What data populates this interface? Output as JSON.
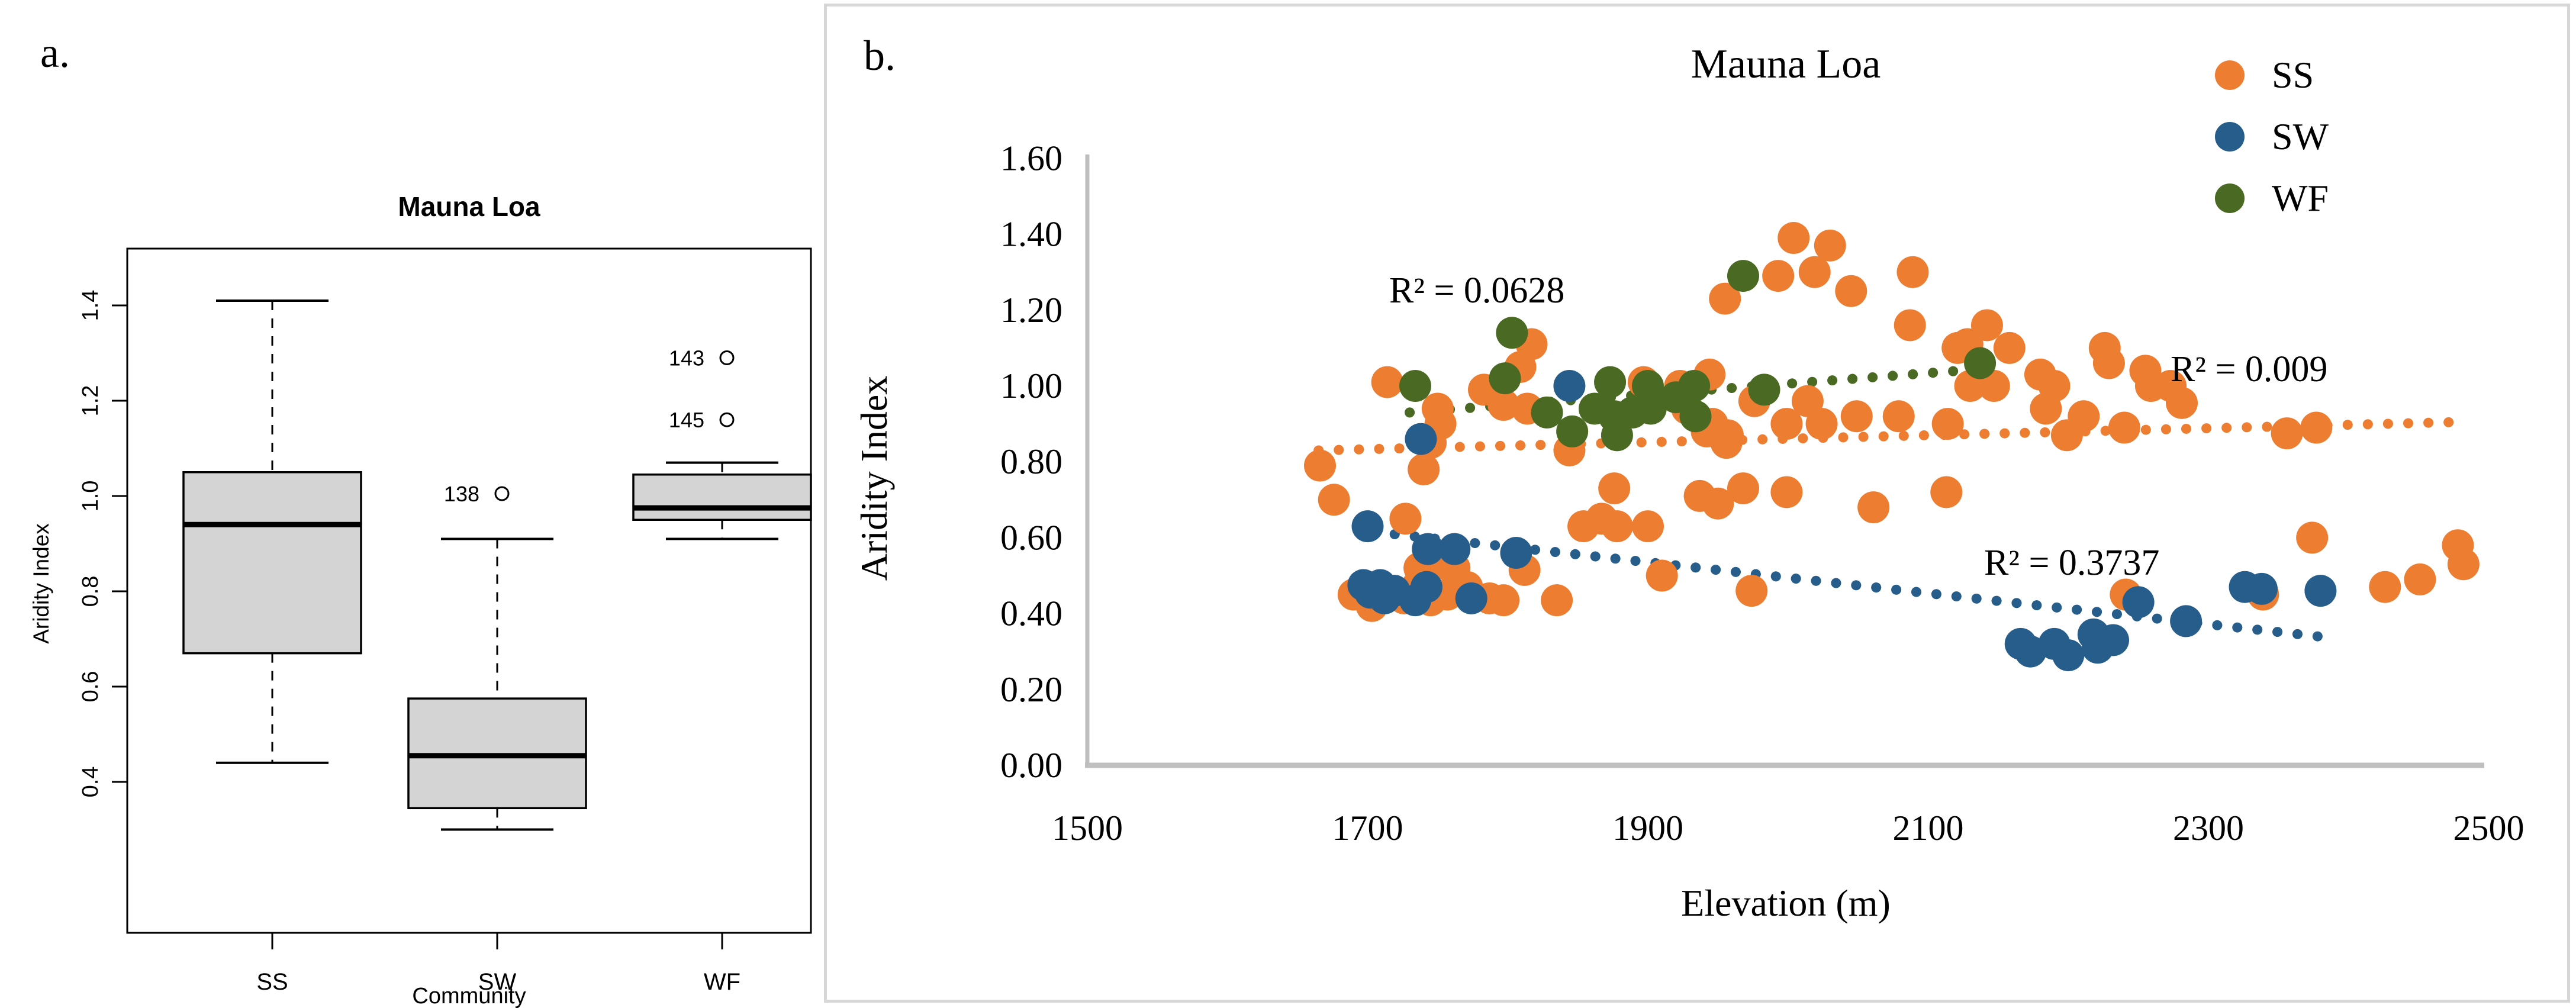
{
  "figure": {
    "panel_a_label": "a.",
    "panel_b_label": "b."
  },
  "colors": {
    "ss": "#ED7D31",
    "sw": "#275D8B",
    "wf": "#4A6A23",
    "box_fill": "#D4D4D4",
    "box_stroke": "#000000",
    "axis_gray": "#BFBFBF",
    "panel_border": "#D7D7D7"
  },
  "chart_data": [
    {
      "type": "box",
      "title": "Mauna Loa",
      "xlabel": "Community",
      "ylabel": "Aridity Index",
      "y_ticks": [
        "1.4",
        "1.2",
        "1.0",
        "0.8",
        "0.6",
        "0.4"
      ],
      "ylim": [
        0.08,
        1.52
      ],
      "categories": [
        "SS",
        "SW",
        "WF"
      ],
      "groups": [
        {
          "label": "SS",
          "min": 0.44,
          "q1": 0.67,
          "median": 0.94,
          "q3": 1.05,
          "max": 1.41,
          "outliers": []
        },
        {
          "label": "SW",
          "min": 0.3,
          "q1": 0.345,
          "median": 0.455,
          "q3": 0.575,
          "max": 0.91,
          "outliers": [
            {
              "id": "138",
              "value": 1.005
            }
          ]
        },
        {
          "label": "WF",
          "min": 0.91,
          "q1": 0.95,
          "median": 0.975,
          "q3": 1.045,
          "max": 1.07,
          "outliers": [
            {
              "id": "143",
              "value": 1.29
            },
            {
              "id": "145",
              "value": 1.16
            }
          ]
        }
      ]
    },
    {
      "type": "scatter",
      "title": "Mauna Loa",
      "xlabel": "Elevation (m)",
      "ylabel": "Aridity Index",
      "x_ticks": [
        "1500",
        "1700",
        "1900",
        "2100",
        "2300",
        "2500"
      ],
      "y_ticks": [
        "0.00",
        "0.20",
        "0.40",
        "0.60",
        "0.80",
        "1.00",
        "1.20",
        "1.40",
        "1.60"
      ],
      "xlim": [
        1500,
        2500
      ],
      "ylim": [
        0.0,
        1.6
      ],
      "legend_position": "top-right",
      "series": [
        {
          "name": "SS",
          "color_key": "ss",
          "points": [
            [
              1703,
              0.42
            ],
            [
              1717,
              0.46
            ],
            [
              1726,
              0.44
            ],
            [
              1735,
              0.47
            ],
            [
              1745,
              0.435
            ],
            [
              1757,
              0.45
            ],
            [
              1771,
              0.47
            ],
            [
              1797,
              0.435
            ],
            [
              1835,
              0.435
            ],
            [
              1787,
              0.44
            ],
            [
              1666,
              0.79
            ],
            [
              1676,
              0.7
            ],
            [
              1690,
              0.45
            ],
            [
              1727,
              0.65
            ],
            [
              1737,
              0.52
            ],
            [
              1762,
              0.52
            ],
            [
              1740,
              0.78
            ],
            [
              1745,
              0.85
            ],
            [
              1756,
              0.53
            ],
            [
              1812,
              0.515
            ],
            [
              1714,
              1.01
            ],
            [
              1750,
              0.94
            ],
            [
              1752,
              0.9
            ],
            [
              1783,
              0.99
            ],
            [
              1797,
              0.95
            ],
            [
              1809,
              1.05
            ],
            [
              1814,
              0.94
            ],
            [
              1817,
              1.11
            ],
            [
              1844,
              0.83
            ],
            [
              1854,
              0.63
            ],
            [
              1867,
              0.65
            ],
            [
              1878,
              0.63
            ],
            [
              1900,
              0.63
            ],
            [
              1876,
              0.73
            ],
            [
              1897,
              1.01
            ],
            [
              1910,
              0.5
            ],
            [
              1923,
              1.0
            ],
            [
              1928,
              0.94
            ],
            [
              1937,
              0.71
            ],
            [
              1942,
              0.88
            ],
            [
              1944,
              1.03
            ],
            [
              1946,
              0.9
            ],
            [
              1950,
              0.69
            ],
            [
              1956,
              0.85
            ],
            [
              1957,
              0.87
            ],
            [
              1968,
              0.73
            ],
            [
              1974,
              0.46
            ],
            [
              1976,
              0.96
            ],
            [
              1999,
              0.9
            ],
            [
              1999,
              0.72
            ],
            [
              2014,
              0.96
            ],
            [
              2024,
              0.9
            ],
            [
              1955,
              1.23
            ],
            [
              1993,
              1.29
            ],
            [
              2004,
              1.39
            ],
            [
              2019,
              1.3
            ],
            [
              2030,
              1.37
            ],
            [
              2045,
              1.25
            ],
            [
              2087,
              1.16
            ],
            [
              2089,
              1.3
            ],
            [
              2049,
              0.92
            ],
            [
              2061,
              0.68
            ],
            [
              2079,
              0.92
            ],
            [
              2113,
              0.72
            ],
            [
              2114,
              0.9
            ],
            [
              2121,
              1.1
            ],
            [
              2128,
              1.11
            ],
            [
              2130,
              1.0
            ],
            [
              2142,
              1.16
            ],
            [
              2147,
              1.0
            ],
            [
              2158,
              1.1
            ],
            [
              2180,
              1.03
            ],
            [
              2184,
              0.94
            ],
            [
              2190,
              1.0
            ],
            [
              2199,
              0.87
            ],
            [
              2211,
              0.92
            ],
            [
              2226,
              1.1
            ],
            [
              2229,
              1.06
            ],
            [
              2240,
              0.89
            ],
            [
              2255,
              1.04
            ],
            [
              2259,
              1.0
            ],
            [
              2273,
              1.0
            ],
            [
              2281,
              0.955
            ],
            [
              2241,
              0.45
            ],
            [
              2339,
              0.45
            ],
            [
              2356,
              0.875
            ],
            [
              2374,
              0.6
            ],
            [
              2377,
              0.89
            ],
            [
              2426,
              0.47
            ],
            [
              2451,
              0.49
            ],
            [
              2478,
              0.58
            ],
            [
              2482,
              0.53
            ]
          ],
          "trendline": {
            "x1": 1665,
            "y1": 0.83,
            "x2": 2480,
            "y2": 0.905,
            "r2_label": "R² = 0.009"
          }
        },
        {
          "name": "SW",
          "color_key": "sw",
          "points": [
            [
              1697,
              0.475
            ],
            [
              1702,
              0.455
            ],
            [
              1709,
              0.475
            ],
            [
              1712,
              0.44
            ],
            [
              1719,
              0.46
            ],
            [
              1734,
              0.435
            ],
            [
              1742,
              0.47
            ],
            [
              1774,
              0.44
            ],
            [
              1700,
              0.63
            ],
            [
              1743,
              0.57
            ],
            [
              1762,
              0.57
            ],
            [
              1806,
              0.56
            ],
            [
              1738,
              0.86
            ],
            [
              1844,
              1.0
            ],
            [
              2166,
              0.32
            ],
            [
              2173,
              0.3
            ],
            [
              2190,
              0.32
            ],
            [
              2200,
              0.29
            ],
            [
              2218,
              0.345
            ],
            [
              2221,
              0.31
            ],
            [
              2232,
              0.33
            ],
            [
              2250,
              0.43
            ],
            [
              2284,
              0.38
            ],
            [
              2326,
              0.47
            ],
            [
              2338,
              0.465
            ],
            [
              2380,
              0.46
            ]
          ],
          "trendline": {
            "x1": 1705,
            "y1": 0.615,
            "x2": 2390,
            "y2": 0.335,
            "r2_label": "R² = 0.3737"
          }
        },
        {
          "name": "WF",
          "color_key": "wf",
          "points": [
            [
              1734,
              1.0
            ],
            [
              1798,
              1.02
            ],
            [
              1803,
              1.14
            ],
            [
              1828,
              0.93
            ],
            [
              1846,
              0.88
            ],
            [
              1862,
              0.94
            ],
            [
              1873,
              1.01
            ],
            [
              1876,
              0.92
            ],
            [
              1878,
              0.87
            ],
            [
              1889,
              0.93
            ],
            [
              1900,
              1.0
            ],
            [
              1902,
              0.94
            ],
            [
              1920,
              0.97
            ],
            [
              1933,
              1.0
            ],
            [
              1934,
              0.92
            ],
            [
              1968,
              1.29
            ],
            [
              1983,
              0.99
            ],
            [
              2137,
              1.06
            ]
          ],
          "trendline": {
            "x1": 1730,
            "y1": 0.93,
            "x2": 2140,
            "y2": 1.045,
            "r2_label": "R² = 0.0628"
          }
        }
      ],
      "annotations": [
        {
          "text": "R² = 0.0628",
          "x": 1825,
          "y": 1.243,
          "series": "WF"
        },
        {
          "text": "R² = 0.009",
          "x": 2364,
          "y": 1.034,
          "series": "SS"
        },
        {
          "text": "R² = 0.3737",
          "x": 2238,
          "y": 0.521,
          "series": "SW"
        }
      ],
      "legend": [
        {
          "label": "SS",
          "color_key": "ss"
        },
        {
          "label": "SW",
          "color_key": "sw"
        },
        {
          "label": "WF",
          "color_key": "wf"
        }
      ]
    }
  ]
}
